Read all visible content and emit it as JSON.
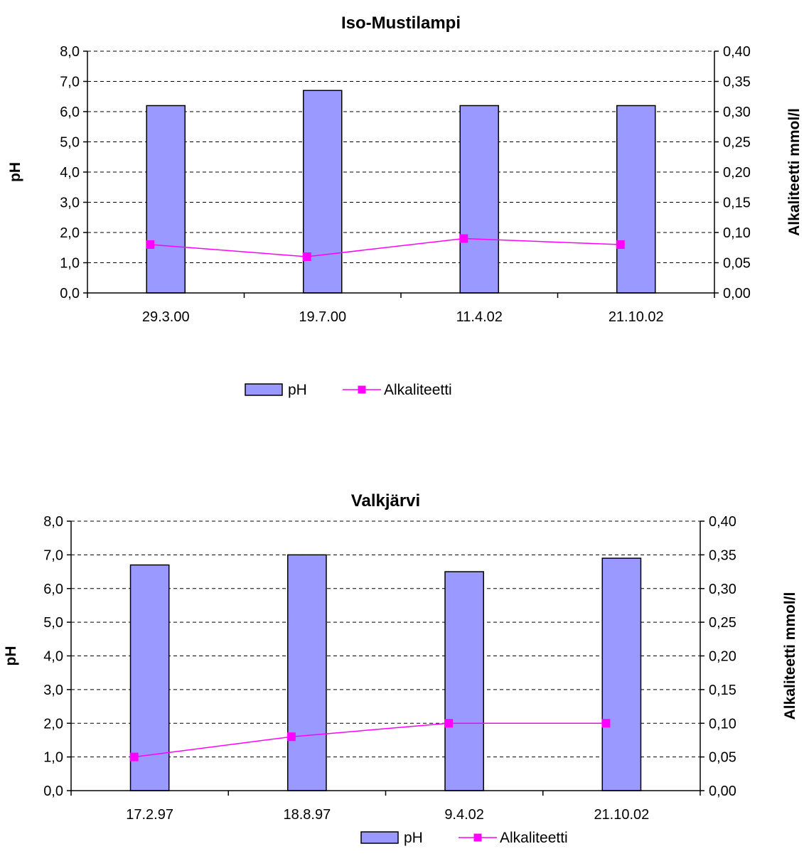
{
  "colors": {
    "bar": "#9999ff",
    "line": "#ff00ff",
    "grid": "#000000"
  },
  "chart_data": [
    {
      "type": "bar",
      "title": "Iso-Mustilampi",
      "categories": [
        "29.3.00",
        "19.7.00",
        "11.4.02",
        "21.10.02"
      ],
      "series": [
        {
          "name": "pH",
          "type": "bar",
          "axis": "left",
          "values": [
            6.2,
            6.7,
            6.2,
            6.2
          ]
        },
        {
          "name": "Alkaliteetti",
          "type": "line",
          "axis": "right",
          "values": [
            0.08,
            0.06,
            0.09,
            0.08
          ]
        }
      ],
      "ylabel": "pH",
      "y2label": "Alkaliteetti mmol/l",
      "ylim": [
        0,
        8
      ],
      "y2lim": [
        0,
        0.4
      ],
      "yticks": [
        "0,0",
        "1,0",
        "2,0",
        "3,0",
        "4,0",
        "5,0",
        "6,0",
        "7,0",
        "8,0"
      ],
      "y2ticks": [
        "0,00",
        "0,05",
        "0,10",
        "0,15",
        "0,20",
        "0,25",
        "0,30",
        "0,35",
        "0,40"
      ],
      "grid": true,
      "legend": "bottom"
    },
    {
      "type": "bar",
      "title": "Valkjärvi",
      "categories": [
        "17.2.97",
        "18.8.97",
        "9.4.02",
        "21.10.02"
      ],
      "series": [
        {
          "name": "pH",
          "type": "bar",
          "axis": "left",
          "values": [
            6.7,
            7.0,
            6.5,
            6.9
          ]
        },
        {
          "name": "Alkaliteetti",
          "type": "line",
          "axis": "right",
          "values": [
            0.05,
            0.08,
            0.1,
            0.1
          ]
        }
      ],
      "ylabel": "pH",
      "y2label": "Alkaliteetti mmol/l",
      "ylim": [
        0,
        8
      ],
      "y2lim": [
        0,
        0.4
      ],
      "yticks": [
        "0,0",
        "1,0",
        "2,0",
        "3,0",
        "4,0",
        "5,0",
        "6,0",
        "7,0",
        "8,0"
      ],
      "y2ticks": [
        "0,00",
        "0,05",
        "0,10",
        "0,15",
        "0,20",
        "0,25",
        "0,30",
        "0,35",
        "0,40"
      ],
      "grid": true,
      "legend": "bottom"
    }
  ]
}
